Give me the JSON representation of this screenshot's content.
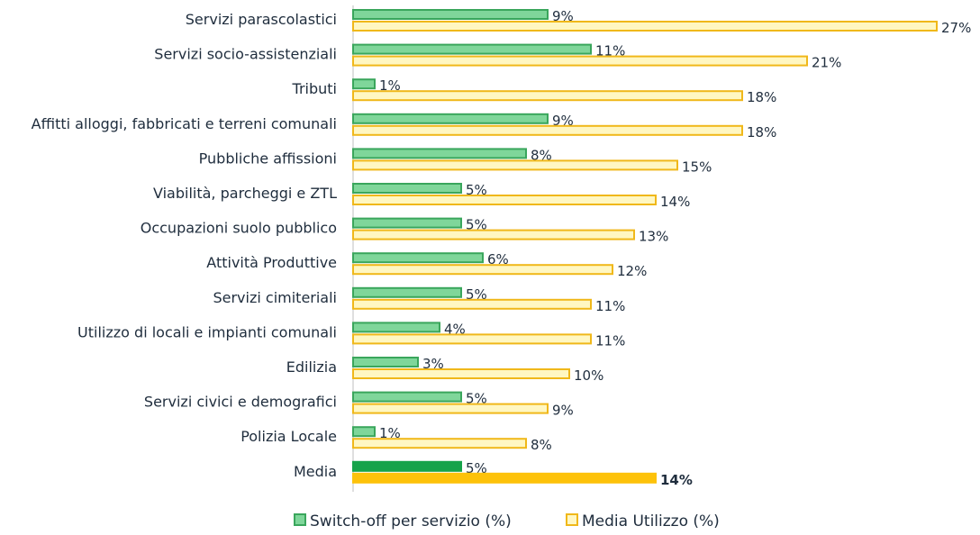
{
  "chart_data": {
    "type": "bar",
    "orientation": "horizontal",
    "title": "",
    "xlabel": "",
    "ylabel": "",
    "xlim": [
      0,
      27
    ],
    "grid": false,
    "legend_position": "bottom",
    "categories": [
      "Servizi parascolastici",
      "Servizi socio-assistenziali",
      "Tributi",
      "Affitti alloggi, fabbricati e terreni comunali",
      "Pubbliche affissioni",
      "Viabilità, parcheggi e ZTL",
      "Occupazioni suolo pubblico",
      "Attività Produttive",
      "Servizi cimiteriali",
      "Utilizzo di locali e impianti comunali",
      "Edilizia",
      "Servizi civici e demografici",
      "Polizia Locale",
      "Media"
    ],
    "series": [
      {
        "name": "Switch-off per servizio (%)",
        "values": [
          9,
          11,
          1,
          9,
          8,
          5,
          5,
          6,
          5,
          4,
          3,
          5,
          1,
          5
        ],
        "labels": [
          "9%",
          "11%",
          "1%",
          "9%",
          "8%",
          "5%",
          "5%",
          "6%",
          "5%",
          "4%",
          "3%",
          "5%",
          "1%",
          "5%"
        ],
        "color": "#7fd69a",
        "border": "#3aa65c",
        "highlight_color": "#16a34a"
      },
      {
        "name": "Media Utilizzo (%)",
        "values": [
          27,
          21,
          18,
          18,
          15,
          14,
          13,
          12,
          11,
          11,
          10,
          9,
          8,
          14
        ],
        "labels": [
          "27%",
          "21%",
          "18%",
          "18%",
          "15%",
          "14%",
          "13%",
          "12%",
          "11%",
          "11%",
          "10%",
          "9%",
          "8%",
          "14%"
        ],
        "color": "#fff7c2",
        "border": "#f0b81a",
        "highlight_color": "#fdc20a"
      }
    ],
    "highlight_category": "Media"
  }
}
